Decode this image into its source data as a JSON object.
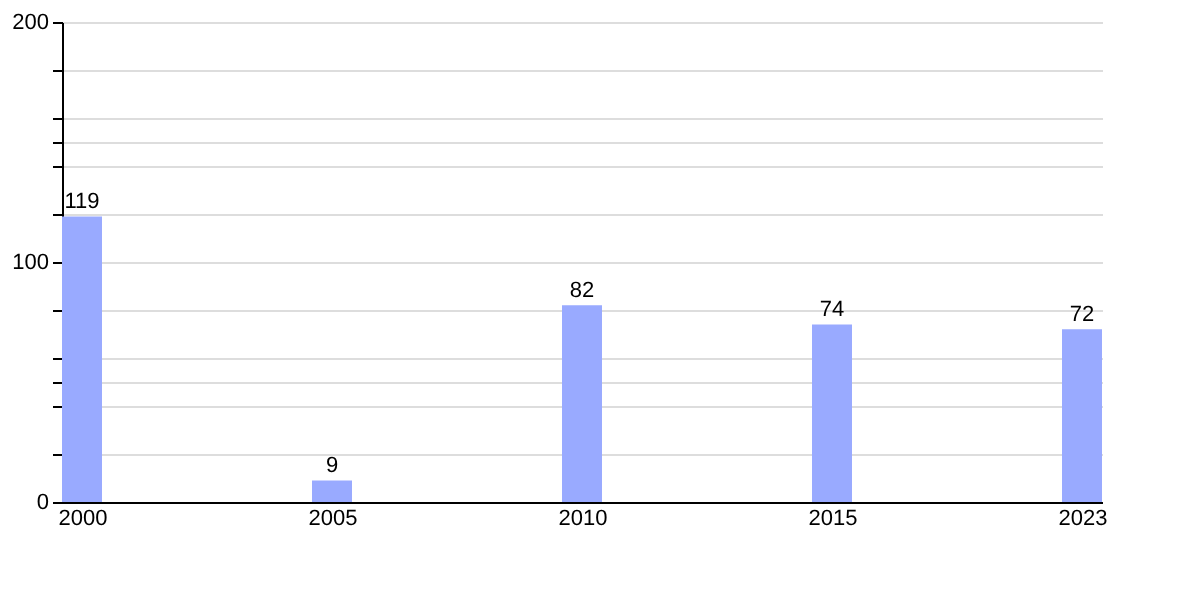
{
  "chart_data": {
    "type": "bar",
    "categories": [
      "2000",
      "2005",
      "2010",
      "2015",
      "2023"
    ],
    "values": [
      119,
      9,
      82,
      74,
      72
    ],
    "color": "#99aaff",
    "ylim": [
      0,
      200
    ],
    "yticks": [
      0,
      {
        "value": 20,
        "label": null
      },
      {
        "value": 40,
        "label": null
      },
      {
        "value": 50,
        "label": null
      },
      {
        "value": 60,
        "label": null
      },
      {
        "value": 80,
        "label": null
      },
      100,
      {
        "value": 120,
        "label": null
      },
      {
        "value": 140,
        "label": null
      },
      {
        "value": 150,
        "label": null
      },
      {
        "value": 160,
        "label": null
      },
      {
        "value": 180,
        "label": null
      },
      200
    ],
    "grid": "y",
    "data_labels": true
  }
}
